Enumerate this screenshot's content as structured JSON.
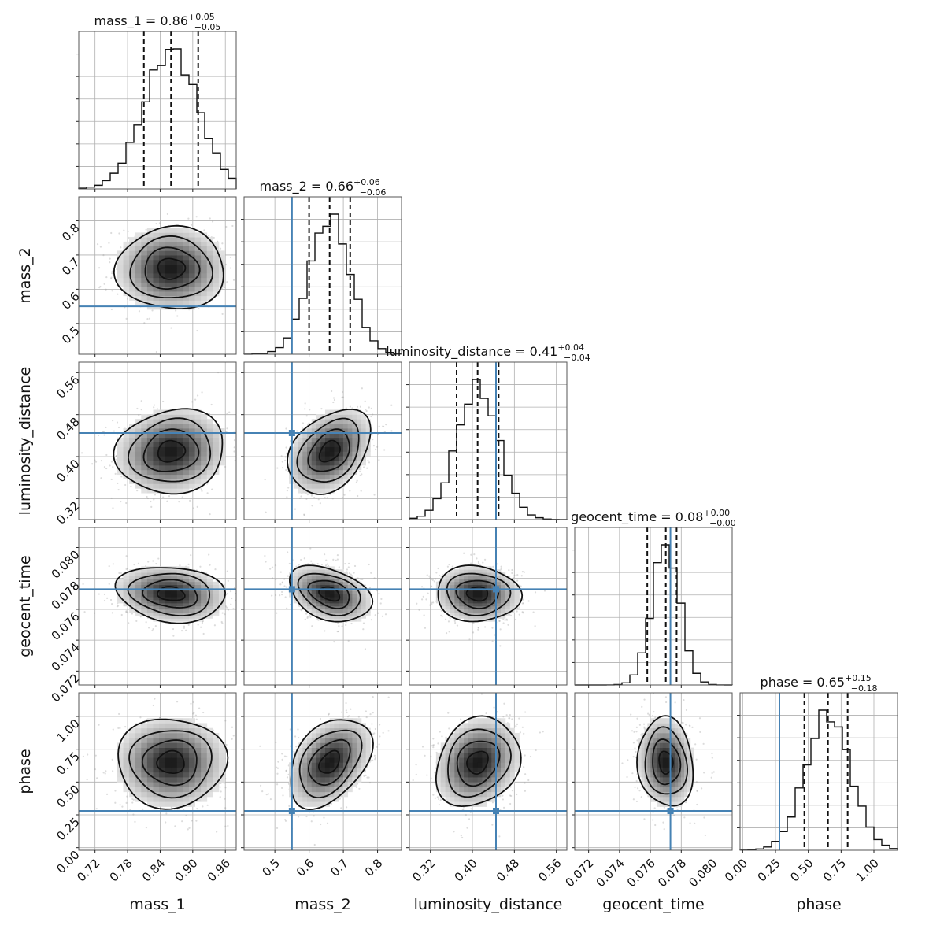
{
  "chart_data": {
    "type": "corner",
    "parameters": [
      {
        "key": "mass_1",
        "label": "mass_1",
        "median": 0.86,
        "q_lo": 0.81,
        "q_hi": 0.91,
        "sigma": 0.05,
        "range": [
          0.69,
          0.98
        ],
        "ticks": [
          0.72,
          0.78,
          0.84,
          0.9,
          0.96
        ],
        "tick_labels": [
          "0.72",
          "0.78",
          "0.84",
          "0.90",
          "0.96"
        ],
        "truth": null,
        "title_main": "mass_1 = 0.86",
        "title_sup": "+0.05",
        "title_sub": "−0.05"
      },
      {
        "key": "mass_2",
        "label": "mass_2",
        "median": 0.66,
        "q_lo": 0.6,
        "q_hi": 0.72,
        "sigma": 0.06,
        "range": [
          0.41,
          0.87
        ],
        "ticks": [
          0.5,
          0.6,
          0.7,
          0.8
        ],
        "tick_labels": [
          "0.5",
          "0.6",
          "0.7",
          "0.8"
        ],
        "truth": 0.55,
        "title_main": "mass_2 = 0.66",
        "title_sup": "+0.06",
        "title_sub": "−0.06"
      },
      {
        "key": "luminosity_distance",
        "label": "luminosity_distance",
        "median": 0.41,
        "q_lo": 0.37,
        "q_hi": 0.45,
        "sigma": 0.04,
        "range": [
          0.28,
          0.58
        ],
        "ticks": [
          0.32,
          0.4,
          0.48,
          0.56
        ],
        "tick_labels": [
          "0.32",
          "0.40",
          "0.48",
          "0.56"
        ],
        "truth": 0.445,
        "title_main": "luminosity_distance = 0.41",
        "title_sup": "+0.04",
        "title_sub": "−0.04"
      },
      {
        "key": "geocent_time",
        "label": "geocent_time",
        "median": 0.077,
        "q_lo": 0.0758,
        "q_hi": 0.0777,
        "sigma": 0.0009,
        "range": [
          0.0711,
          0.0813
        ],
        "ticks": [
          0.072,
          0.074,
          0.076,
          0.078,
          0.08
        ],
        "tick_labels": [
          "0.072",
          "0.074",
          "0.076",
          "0.078",
          "0.080"
        ],
        "truth": 0.0773,
        "title_main": "geocent_time = 0.08",
        "title_sup": "+0.00",
        "title_sub": "−0.00"
      },
      {
        "key": "phase",
        "label": "phase",
        "median": 0.65,
        "q_lo": 0.47,
        "q_hi": 0.8,
        "sigma": 0.17,
        "range": [
          -0.02,
          1.18
        ],
        "ticks": [
          0.0,
          0.25,
          0.5,
          0.75,
          1.0
        ],
        "tick_labels": [
          "0.00",
          "0.25",
          "0.50",
          "0.75",
          "1.00"
        ],
        "truth": 0.28,
        "title_main": "phase = 0.65",
        "title_sup": "+0.15",
        "title_sub": "−0.18"
      }
    ],
    "pair_correlations": [
      {
        "row": 1,
        "col": 0,
        "rho": 0.0
      },
      {
        "row": 2,
        "col": 0,
        "rho": 0.1
      },
      {
        "row": 2,
        "col": 1,
        "rho": 0.35
      },
      {
        "row": 3,
        "col": 0,
        "rho": -0.15
      },
      {
        "row": 3,
        "col": 1,
        "rho": -0.35
      },
      {
        "row": 3,
        "col": 2,
        "rho": -0.05
      },
      {
        "row": 4,
        "col": 0,
        "rho": 0.0
      },
      {
        "row": 4,
        "col": 1,
        "rho": 0.4
      },
      {
        "row": 4,
        "col": 2,
        "rho": 0.2
      },
      {
        "row": 4,
        "col": 3,
        "rho": -0.1
      }
    ],
    "contour_levels_sigma": [
      0.5,
      1.0,
      1.5,
      2.0
    ],
    "grid": true,
    "colors": {
      "truth": "#4682b4",
      "contour": "#111111",
      "hist": "#111111",
      "samples": "#9a9a9a"
    }
  }
}
